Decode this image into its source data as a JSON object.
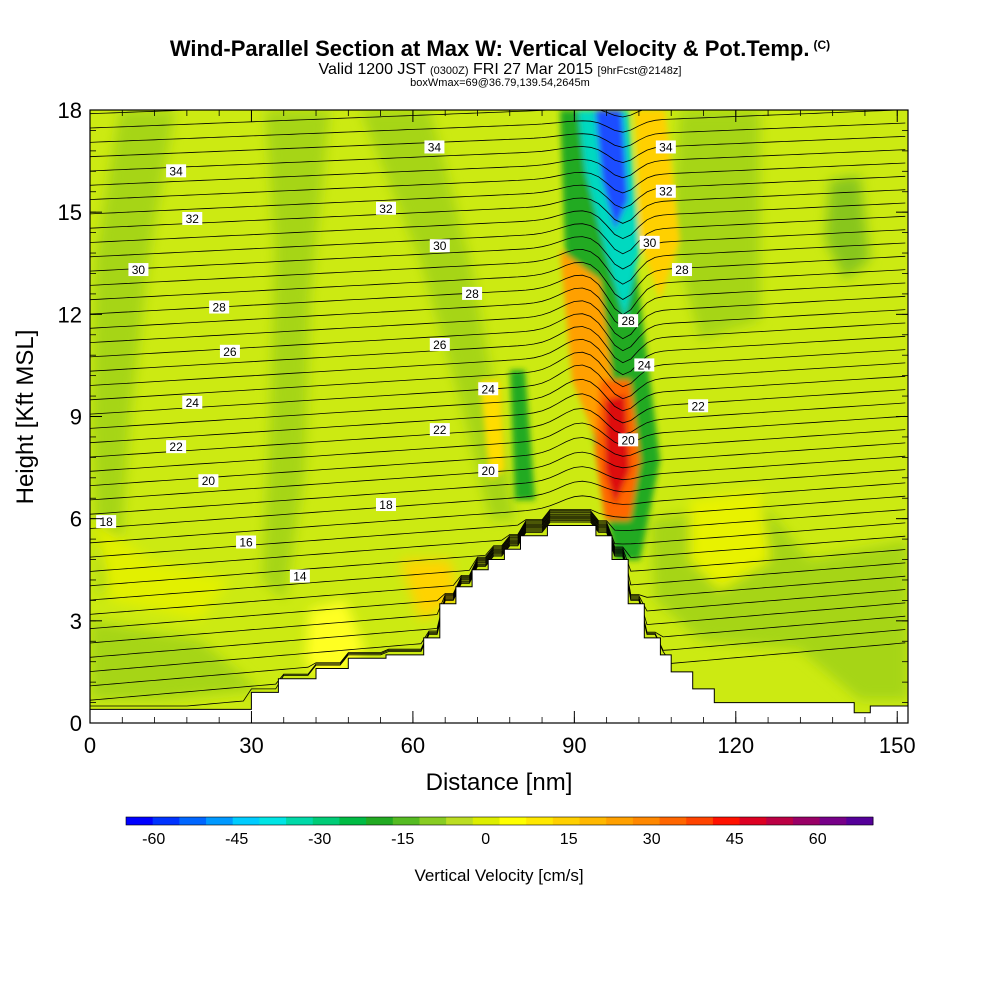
{
  "header": {
    "title": "Wind-Parallel Section at Max W: Vertical Velocity & Pot.Temp.",
    "title_mark": "(C)",
    "valid_prefix": "Valid 1200 JST",
    "valid_utc": "(0300Z)",
    "valid_date": "FRI 27 Mar 2015",
    "forecast": "[9hrFcst@2148z]",
    "box_info": "boxWmax=69@36.79,139.54,2645m"
  },
  "chart_data": {
    "type": "heatmap",
    "xlabel": "Distance [nm]",
    "ylabel": "Height [Kft MSL]",
    "xlim": [
      0,
      152
    ],
    "ylim": [
      0,
      18
    ],
    "x_ticks": [
      0,
      30,
      60,
      90,
      120,
      150
    ],
    "y_ticks": [
      0,
      3,
      6,
      9,
      12,
      15,
      18
    ],
    "terrain": [
      [
        0,
        0.4
      ],
      [
        30,
        0.4
      ],
      [
        30,
        0.9
      ],
      [
        35,
        0.9
      ],
      [
        35,
        1.3
      ],
      [
        42,
        1.3
      ],
      [
        42,
        1.6
      ],
      [
        48,
        1.6
      ],
      [
        48,
        1.9
      ],
      [
        55,
        1.9
      ],
      [
        55,
        2.0
      ],
      [
        62,
        2.0
      ],
      [
        62,
        2.5
      ],
      [
        65,
        2.5
      ],
      [
        65,
        3.5
      ],
      [
        68,
        3.5
      ],
      [
        68,
        4.0
      ],
      [
        71,
        4.0
      ],
      [
        71,
        4.5
      ],
      [
        74,
        4.5
      ],
      [
        74,
        4.8
      ],
      [
        77,
        4.8
      ],
      [
        77,
        5.1
      ],
      [
        80,
        5.1
      ],
      [
        80,
        5.5
      ],
      [
        85,
        5.5
      ],
      [
        85,
        5.8
      ],
      [
        90,
        5.8
      ],
      [
        90,
        5.8
      ],
      [
        94,
        5.8
      ],
      [
        94,
        5.5
      ],
      [
        97,
        5.5
      ],
      [
        97,
        4.8
      ],
      [
        100,
        4.8
      ],
      [
        100,
        3.5
      ],
      [
        103,
        3.5
      ],
      [
        103,
        2.5
      ],
      [
        106,
        2.5
      ],
      [
        106,
        2.0
      ],
      [
        108,
        2.0
      ],
      [
        108,
        1.5
      ],
      [
        112,
        1.5
      ],
      [
        112,
        1.0
      ],
      [
        116,
        1.0
      ],
      [
        116,
        0.6
      ],
      [
        142,
        0.6
      ],
      [
        142,
        0.3
      ],
      [
        145,
        0.3
      ],
      [
        145,
        0.5
      ],
      [
        152,
        0.5
      ]
    ],
    "colorbar": {
      "title": "Vertical Velocity [cm/s]",
      "min": -65,
      "max": 70,
      "tick_values": [
        -60,
        -45,
        -30,
        -15,
        0,
        15,
        30,
        45,
        60
      ],
      "tick_labels": [
        "-60",
        "-45",
        "-30",
        "-15",
        "0",
        "15",
        "30",
        "45",
        "60"
      ],
      "colors": [
        "#0000ff",
        "#0033ff",
        "#0066ff",
        "#0099ff",
        "#00ccff",
        "#00e5e5",
        "#00d9a8",
        "#00cc77",
        "#00bb44",
        "#22aa22",
        "#55bb22",
        "#88cc22",
        "#bbdd22",
        "#ddee00",
        "#ffff00",
        "#ffe800",
        "#ffd000",
        "#ffb800",
        "#ffa000",
        "#ff8800",
        "#ff6600",
        "#ff4400",
        "#ff1100",
        "#dd0022",
        "#bb0044",
        "#990066",
        "#770088",
        "#550099"
      ]
    },
    "isentrope_labels": [
      {
        "text": "34",
        "x": 16,
        "y": 16.2
      },
      {
        "text": "34",
        "x": 64,
        "y": 16.9
      },
      {
        "text": "34",
        "x": 107,
        "y": 16.9
      },
      {
        "text": "32",
        "x": 19,
        "y": 14.8
      },
      {
        "text": "32",
        "x": 55,
        "y": 15.1
      },
      {
        "text": "32",
        "x": 107,
        "y": 15.6
      },
      {
        "text": "30",
        "x": 9,
        "y": 13.3
      },
      {
        "text": "30",
        "x": 65,
        "y": 14.0
      },
      {
        "text": "30",
        "x": 104,
        "y": 14.1
      },
      {
        "text": "28",
        "x": 24,
        "y": 12.2
      },
      {
        "text": "28",
        "x": 71,
        "y": 12.6
      },
      {
        "text": "28",
        "x": 110,
        "y": 13.3
      },
      {
        "text": "28",
        "x": 100,
        "y": 11.8
      },
      {
        "text": "26",
        "x": 26,
        "y": 10.9
      },
      {
        "text": "26",
        "x": 65,
        "y": 11.1
      },
      {
        "text": "24",
        "x": 19,
        "y": 9.4
      },
      {
        "text": "24",
        "x": 74,
        "y": 9.8
      },
      {
        "text": "24",
        "x": 103,
        "y": 10.5
      },
      {
        "text": "22",
        "x": 16,
        "y": 8.1
      },
      {
        "text": "22",
        "x": 65,
        "y": 8.6
      },
      {
        "text": "22",
        "x": 113,
        "y": 9.3
      },
      {
        "text": "20",
        "x": 22,
        "y": 7.1
      },
      {
        "text": "20",
        "x": 74,
        "y": 7.4
      },
      {
        "text": "20",
        "x": 100,
        "y": 8.3
      },
      {
        "text": "18",
        "x": 3,
        "y": 5.9
      },
      {
        "text": "18",
        "x": 55,
        "y": 6.4
      },
      {
        "text": "16",
        "x": 29,
        "y": 5.3
      },
      {
        "text": "14",
        "x": 39,
        "y": 4.3
      }
    ]
  }
}
